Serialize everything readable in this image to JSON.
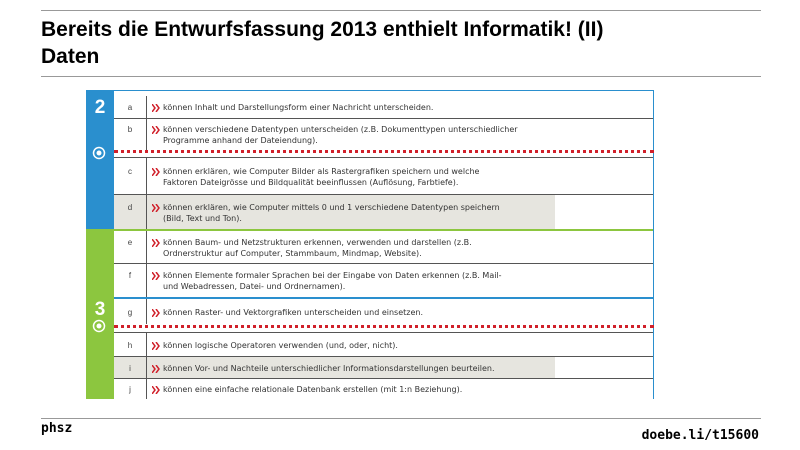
{
  "header": {
    "title_lines": [
      "Bereits die Entwurfsfassung 2013 enthielt Informatik! (II)",
      "Daten"
    ]
  },
  "table": {
    "cycles": [
      "2",
      "3"
    ],
    "rows": [
      {
        "letter": "a",
        "lines": [
          "können Inhalt und Darstellungsform einer Nachricht unterscheiden."
        ]
      },
      {
        "letter": "b",
        "lines": [
          "können verschiedene Datentypen unterscheiden (z.B. Dokumenttypen unterschiedlicher",
          "Programme anhand der Dateiendung)."
        ]
      },
      {
        "letter": "c",
        "lines": [
          "können erklären, wie Computer Bilder als Rastergrafiken speichern und welche",
          "Faktoren Dateigrösse und Bildqualität beeinflussen (Auflösung, Farbtiefe)."
        ]
      },
      {
        "letter": "d",
        "lines": [
          "können erklären, wie Computer mittels 0 und 1 verschiedene Datentypen speichern",
          "(Bild, Text und Ton)."
        ],
        "highlight": true
      },
      {
        "letter": "e",
        "lines": [
          "können Baum- und Netzstrukturen erkennen, verwenden und darstellen (z.B.",
          "Ordnerstruktur auf Computer, Stammbaum, Mindmap, Website)."
        ]
      },
      {
        "letter": "f",
        "lines": [
          "können Elemente formaler Sprachen bei der Eingabe von Daten erkennen (z.B. Mail-",
          "und Webadressen, Datei- und Ordnernamen)."
        ]
      },
      {
        "letter": "g",
        "lines": [
          "können Raster- und Vektorgrafiken unterscheiden und einsetzen."
        ]
      },
      {
        "letter": "h",
        "lines": [
          "können logische Operatoren verwenden (und, oder, nicht)."
        ]
      },
      {
        "letter": "i",
        "lines": [
          "können Vor- und Nachteile unterschiedlicher Informationsdarstellungen beurteilen."
        ],
        "highlight": true
      },
      {
        "letter": "j",
        "lines": [
          "können eine einfache relationale Datenbank erstellen (mit 1:n Beziehung)."
        ]
      }
    ]
  },
  "footer": {
    "left": "phsz",
    "right": "doebe.li/t15600"
  }
}
